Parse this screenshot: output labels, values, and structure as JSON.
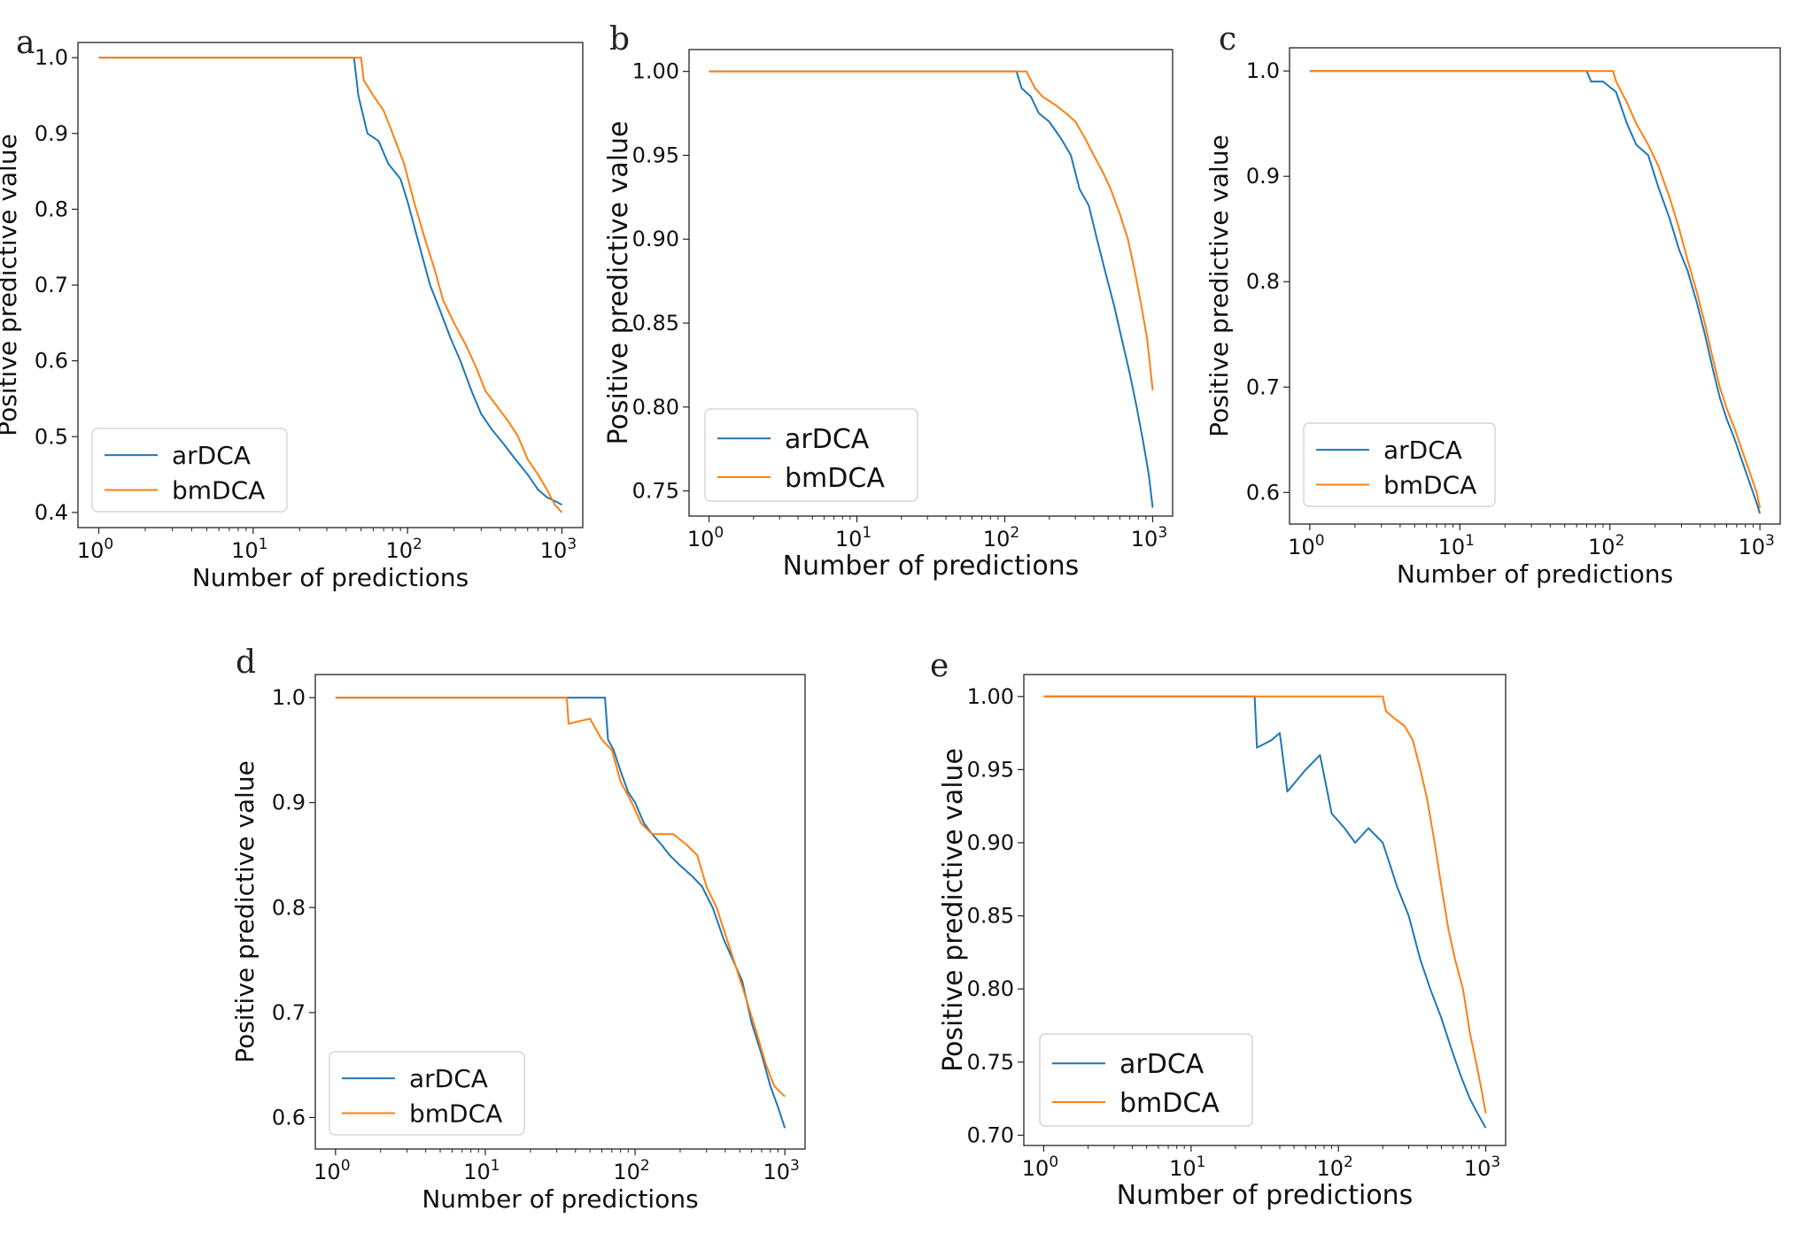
{
  "colors": {
    "arDCA": "#1f77b4",
    "bmDCA": "#ff7f0e",
    "axis": "#222222"
  },
  "chart_data": [
    {
      "panel": "a",
      "type": "line",
      "xlabel": "Number of predictions",
      "ylabel": "Positive predictive value",
      "xscale": "log",
      "xlim": [
        1,
        1000
      ],
      "ylim": [
        0.38,
        1.02
      ],
      "yticks": [
        1.0,
        0.9,
        0.8,
        0.7,
        0.6,
        0.5,
        0.4
      ],
      "ytick_labels": [
        "1.0",
        "0.9",
        "0.8",
        "0.7",
        "0.6",
        "0.5",
        "0.4"
      ],
      "xtick_labels": [
        {
          "base": "10",
          "exp": "0"
        },
        {
          "base": "10",
          "exp": "1"
        },
        {
          "base": "10",
          "exp": "2"
        },
        {
          "base": "10",
          "exp": "3"
        }
      ],
      "legend_position": "lower-left",
      "series": [
        {
          "name": "arDCA",
          "x": [
            1,
            45,
            48,
            55,
            65,
            75,
            90,
            100,
            120,
            140,
            160,
            190,
            220,
            260,
            300,
            350,
            420,
            500,
            600,
            700,
            800,
            900,
            1000
          ],
          "y": [
            1.0,
            1.0,
            0.95,
            0.9,
            0.89,
            0.86,
            0.84,
            0.81,
            0.75,
            0.7,
            0.67,
            0.63,
            0.6,
            0.56,
            0.53,
            0.51,
            0.49,
            0.47,
            0.45,
            0.43,
            0.42,
            0.415,
            0.41
          ]
        },
        {
          "name": "bmDCA",
          "x": [
            1,
            50,
            52,
            60,
            70,
            80,
            95,
            110,
            130,
            150,
            170,
            200,
            240,
            280,
            320,
            380,
            450,
            520,
            600,
            700,
            800,
            900,
            1000
          ],
          "y": [
            1.0,
            1.0,
            0.97,
            0.95,
            0.93,
            0.9,
            0.86,
            0.81,
            0.76,
            0.72,
            0.68,
            0.65,
            0.62,
            0.59,
            0.56,
            0.54,
            0.52,
            0.5,
            0.47,
            0.45,
            0.43,
            0.41,
            0.4
          ]
        }
      ]
    },
    {
      "panel": "b",
      "type": "line",
      "xlabel": "Number of predictions",
      "ylabel": "Positive predictive value",
      "xscale": "log",
      "xlim": [
        1,
        1000
      ],
      "ylim": [
        0.735,
        1.013
      ],
      "yticks": [
        1.0,
        0.95,
        0.9,
        0.85,
        0.8,
        0.75
      ],
      "ytick_labels": [
        "1.00",
        "0.95",
        "0.90",
        "0.85",
        "0.80",
        "0.75"
      ],
      "xtick_labels": [
        {
          "base": "10",
          "exp": "0"
        },
        {
          "base": "10",
          "exp": "1"
        },
        {
          "base": "10",
          "exp": "2"
        },
        {
          "base": "10",
          "exp": "3"
        }
      ],
      "legend_position": "lower-left",
      "series": [
        {
          "name": "arDCA",
          "x": [
            1,
            120,
            130,
            150,
            170,
            200,
            240,
            280,
            320,
            370,
            420,
            480,
            550,
            620,
            700,
            780,
            860,
            940,
            1000
          ],
          "y": [
            1.0,
            1.0,
            0.99,
            0.985,
            0.975,
            0.97,
            0.96,
            0.95,
            0.93,
            0.92,
            0.9,
            0.88,
            0.86,
            0.84,
            0.82,
            0.8,
            0.78,
            0.76,
            0.74
          ]
        },
        {
          "name": "bmDCA",
          "x": [
            1,
            140,
            160,
            180,
            220,
            260,
            300,
            350,
            400,
            460,
            520,
            600,
            680,
            760,
            840,
            920,
            1000
          ],
          "y": [
            1.0,
            1.0,
            0.99,
            0.985,
            0.98,
            0.975,
            0.97,
            0.96,
            0.95,
            0.94,
            0.93,
            0.915,
            0.9,
            0.88,
            0.86,
            0.84,
            0.81
          ]
        }
      ]
    },
    {
      "panel": "c",
      "type": "line",
      "xlabel": "Number of predictions",
      "ylabel": "Positive predictive value",
      "xscale": "log",
      "xlim": [
        1,
        1000
      ],
      "ylim": [
        0.57,
        1.022
      ],
      "yticks": [
        1.0,
        0.9,
        0.8,
        0.7,
        0.6
      ],
      "ytick_labels": [
        "1.0",
        "0.9",
        "0.8",
        "0.7",
        "0.6"
      ],
      "xtick_labels": [
        {
          "base": "10",
          "exp": "0"
        },
        {
          "base": "10",
          "exp": "1"
        },
        {
          "base": "10",
          "exp": "2"
        },
        {
          "base": "10",
          "exp": "3"
        }
      ],
      "legend_position": "top-left below curve",
      "series": [
        {
          "name": "arDCA",
          "x": [
            1,
            70,
            75,
            90,
            110,
            130,
            150,
            180,
            210,
            250,
            290,
            330,
            380,
            430,
            480,
            540,
            600,
            680,
            760,
            850,
            950,
            1000
          ],
          "y": [
            1.0,
            1.0,
            0.99,
            0.99,
            0.98,
            0.95,
            0.93,
            0.92,
            0.89,
            0.86,
            0.83,
            0.81,
            0.78,
            0.75,
            0.72,
            0.69,
            0.67,
            0.65,
            0.63,
            0.61,
            0.59,
            0.58
          ]
        },
        {
          "name": "bmDCA",
          "x": [
            1,
            105,
            110,
            130,
            150,
            180,
            210,
            250,
            290,
            330,
            380,
            430,
            480,
            540,
            600,
            680,
            760,
            850,
            950,
            1000
          ],
          "y": [
            1.0,
            1.0,
            0.99,
            0.97,
            0.95,
            0.93,
            0.91,
            0.88,
            0.85,
            0.82,
            0.79,
            0.76,
            0.73,
            0.7,
            0.68,
            0.66,
            0.64,
            0.62,
            0.6,
            0.585
          ]
        }
      ]
    },
    {
      "panel": "d",
      "type": "line",
      "xlabel": "Number of predictions",
      "ylabel": "Positive predictive value",
      "xscale": "log",
      "xlim": [
        1,
        1000
      ],
      "ylim": [
        0.57,
        1.022
      ],
      "yticks": [
        1.0,
        0.9,
        0.8,
        0.7,
        0.6
      ],
      "ytick_labels": [
        "1.0",
        "0.9",
        "0.8",
        "0.7",
        "0.6"
      ],
      "xtick_labels": [
        {
          "base": "10",
          "exp": "0"
        },
        {
          "base": "10",
          "exp": "1"
        },
        {
          "base": "10",
          "exp": "2"
        },
        {
          "base": "10",
          "exp": "3"
        }
      ],
      "legend_position": "lower-left",
      "series": [
        {
          "name": "arDCA",
          "x": [
            1,
            63,
            66,
            72,
            80,
            90,
            100,
            115,
            130,
            150,
            170,
            200,
            240,
            280,
            330,
            390,
            450,
            520,
            600,
            700,
            800,
            900,
            1000
          ],
          "y": [
            1.0,
            1.0,
            0.96,
            0.95,
            0.93,
            0.91,
            0.9,
            0.88,
            0.87,
            0.86,
            0.85,
            0.84,
            0.83,
            0.82,
            0.8,
            0.77,
            0.75,
            0.73,
            0.69,
            0.66,
            0.63,
            0.61,
            0.59
          ]
        },
        {
          "name": "bmDCA",
          "x": [
            1,
            35,
            36,
            50,
            60,
            70,
            80,
            95,
            110,
            130,
            150,
            180,
            220,
            260,
            300,
            350,
            410,
            480,
            560,
            650,
            750,
            850,
            1000
          ],
          "y": [
            1.0,
            1.0,
            0.975,
            0.98,
            0.96,
            0.95,
            0.92,
            0.9,
            0.88,
            0.87,
            0.87,
            0.87,
            0.86,
            0.85,
            0.82,
            0.8,
            0.77,
            0.74,
            0.71,
            0.68,
            0.65,
            0.63,
            0.62
          ]
        }
      ]
    },
    {
      "panel": "e",
      "type": "line",
      "xlabel": "Number of predictions",
      "ylabel": "Positive predictive value",
      "xscale": "log",
      "xlim": [
        1,
        1000
      ],
      "ylim": [
        0.693,
        1.015
      ],
      "yticks": [
        1.0,
        0.95,
        0.9,
        0.85,
        0.8,
        0.75,
        0.7
      ],
      "ytick_labels": [
        "1.00",
        "0.95",
        "0.90",
        "0.85",
        "0.80",
        "0.75",
        "0.70"
      ],
      "xtick_labels": [
        {
          "base": "10",
          "exp": "0"
        },
        {
          "base": "10",
          "exp": "1"
        },
        {
          "base": "10",
          "exp": "2"
        },
        {
          "base": "10",
          "exp": "3"
        }
      ],
      "legend_position": "lower-left",
      "series": [
        {
          "name": "arDCA",
          "x": [
            1,
            27,
            28,
            35,
            40,
            45,
            60,
            75,
            90,
            110,
            130,
            160,
            200,
            250,
            300,
            360,
            420,
            500,
            580,
            680,
            780,
            880,
            1000
          ],
          "y": [
            1.0,
            1.0,
            0.965,
            0.97,
            0.975,
            0.935,
            0.95,
            0.96,
            0.92,
            0.91,
            0.9,
            0.91,
            0.9,
            0.87,
            0.85,
            0.82,
            0.8,
            0.78,
            0.76,
            0.74,
            0.725,
            0.715,
            0.705
          ]
        },
        {
          "name": "bmDCA",
          "x": [
            1,
            200,
            210,
            240,
            280,
            320,
            360,
            400,
            450,
            500,
            560,
            620,
            700,
            780,
            860,
            940,
            1000
          ],
          "y": [
            1.0,
            1.0,
            0.99,
            0.985,
            0.98,
            0.97,
            0.95,
            0.93,
            0.9,
            0.87,
            0.84,
            0.82,
            0.8,
            0.77,
            0.75,
            0.73,
            0.715
          ]
        }
      ]
    }
  ]
}
